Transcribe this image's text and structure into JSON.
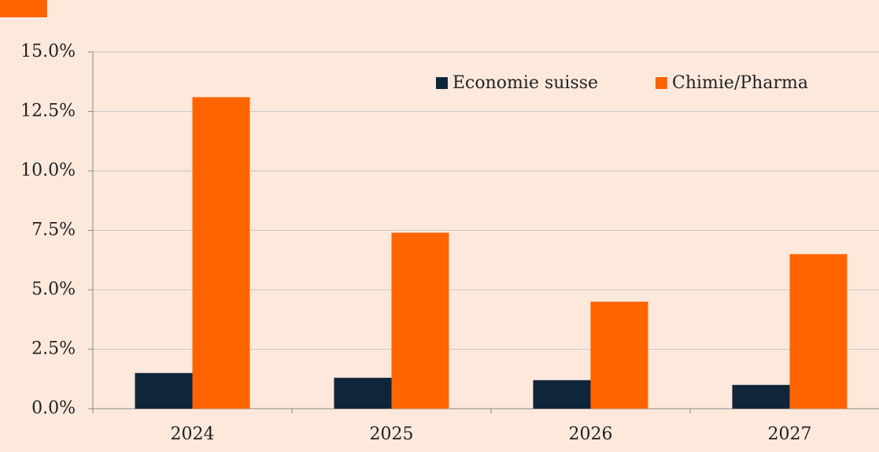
{
  "chart_data": {
    "type": "bar",
    "categories": [
      "2024",
      "2025",
      "2026",
      "2027"
    ],
    "series": [
      {
        "name": "Economie suisse",
        "color": "#0f253a",
        "values": [
          1.5,
          1.3,
          1.2,
          1.0
        ]
      },
      {
        "name": "Chimie/Pharma",
        "color": "#ff6400",
        "values": [
          13.1,
          7.4,
          4.5,
          6.5
        ]
      }
    ],
    "ylim": [
      0,
      15
    ],
    "yticks": [
      {
        "value": 0,
        "label": "0.0%"
      },
      {
        "value": 2.5,
        "label": "2.5%"
      },
      {
        "value": 5,
        "label": "5.0%"
      },
      {
        "value": 7.5,
        "label": "7.5%"
      },
      {
        "value": 10,
        "label": "10.0%"
      },
      {
        "value": 12.5,
        "label": "12.5%"
      },
      {
        "value": 15,
        "label": "15.0%"
      }
    ],
    "grid": true,
    "legend": "top-right"
  }
}
